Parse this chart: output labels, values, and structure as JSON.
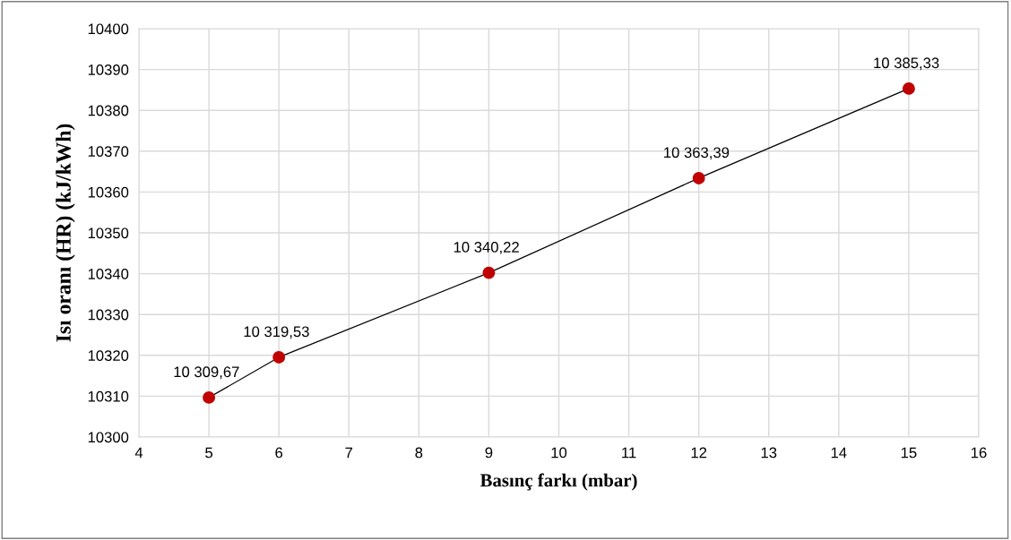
{
  "chart_data": {
    "type": "line",
    "xlabel": "Basınç farkı (mbar)",
    "ylabel": "Isı oranı (HR) (kJ/kWh)",
    "x": [
      5,
      6,
      9,
      12,
      15
    ],
    "series": [
      {
        "color": "#c00000",
        "values": [
          10309.67,
          10319.53,
          10340.22,
          10363.39,
          10385.33
        ],
        "value_labels": [
          "10 309,67",
          "10 319,53",
          "10 340,22",
          "10 363,39",
          "10 385,33"
        ]
      }
    ],
    "xlim": [
      4,
      16
    ],
    "xticks": [
      4,
      5,
      6,
      7,
      8,
      9,
      10,
      11,
      12,
      13,
      14,
      15,
      16
    ],
    "ylim": [
      10300,
      10400
    ],
    "yticks": [
      10300,
      10310,
      10320,
      10330,
      10340,
      10350,
      10360,
      10370,
      10380,
      10390,
      10400
    ],
    "grid": true,
    "marker": "circle",
    "line_style": "solid",
    "legend": false
  }
}
